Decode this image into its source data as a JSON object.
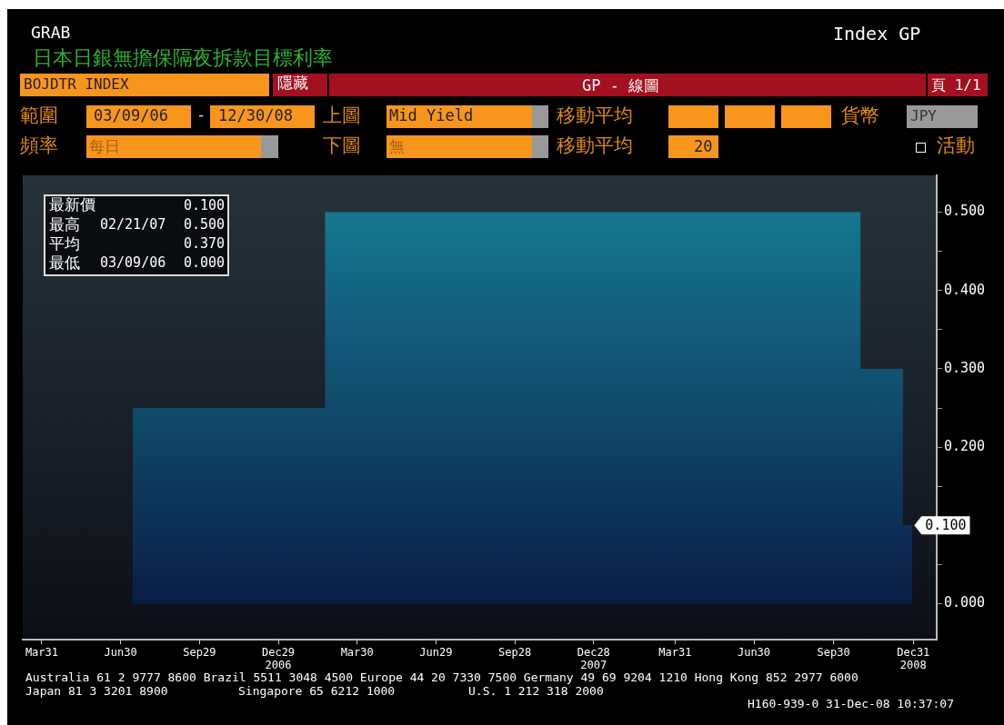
{
  "chart_data": {
    "type": "step",
    "title": "日本日銀無擔保隔夜拆款目標利率",
    "x": [
      "2006-03-09",
      "2006-07-14",
      "2007-02-21",
      "2008-10-31",
      "2008-12-19",
      "2008-12-30"
    ],
    "series": [
      {
        "type": "area",
        "color": "#177f96",
        "values": [
          0,
          0.25,
          0.5,
          0.3,
          0.1,
          0.1
        ],
        "value_labels": [
          null,
          null,
          null,
          null,
          null,
          "0.100"
        ]
      }
    ],
    "xlim": [
      "2006-03-09",
      "2009-01-27"
    ],
    "xticks": [
      {
        "value": "2006-03-31",
        "label": "Mar31"
      },
      {
        "value": "2006-06-30",
        "label": "Jun30"
      },
      {
        "value": "2006-09-29",
        "label": "Sep29"
      },
      {
        "value": "2006-12-29",
        "label": "Dec29\n2006"
      },
      {
        "value": "2007-03-30",
        "label": "Mar30"
      },
      {
        "value": "2007-06-29",
        "label": "Jun29"
      },
      {
        "value": "2007-09-28",
        "label": "Sep28"
      },
      {
        "value": "2007-12-28",
        "label": "Dec28\n2007"
      },
      {
        "value": "2008-03-31",
        "label": "Mar31"
      },
      {
        "value": "2008-06-30",
        "label": "Jun30"
      },
      {
        "value": "2008-09-30",
        "label": "Sep30"
      },
      {
        "value": "2008-12-31",
        "label": "Dec31\n2008"
      }
    ],
    "ylim": [
      -0.046,
      0.547
    ],
    "yticks": [
      {
        "value": 0,
        "label": "0.000"
      },
      {
        "value": 0.05,
        "label": null
      },
      {
        "value": 0.1,
        "label": null
      },
      {
        "value": 0.15,
        "label": null
      },
      {
        "value": 0.2,
        "label": "0.200"
      },
      {
        "value": 0.25,
        "label": null
      },
      {
        "value": 0.3,
        "label": "0.300"
      },
      {
        "value": 0.35,
        "label": null
      },
      {
        "value": 0.4,
        "label": "0.400"
      },
      {
        "value": 0.45,
        "label": null
      },
      {
        "value": 0.5,
        "label": "0.500"
      }
    ],
    "grid": false,
    "legend": false,
    "annotations": [
      "GRAB",
      "Index GP",
      "BOJDTR INDEX",
      "隱藏",
      "GP - 線圖",
      "頁 1/1",
      "範圍",
      "03/09/06",
      "-",
      "12/30/08",
      "上圖",
      "Mid Yield",
      "移動平均",
      "貨幣",
      "JPY",
      "頻率",
      "每日",
      "下圖",
      "無",
      "移動平均",
      "20",
      "活動",
      "最新價",
      "0.100",
      "最高",
      "02/21/07",
      "0.500",
      "平均",
      "0.370",
      "最低",
      "03/09/06",
      "0.000",
      "Australia 61 2 9777 8600 Brazil 5511 3048 4500 Europe 44 20 7330 7500 Germany 49 69 9204 1210 Hong Kong 852 2977 6000",
      "Japan 81 3 3201 8900",
      "Singapore 65 6212 1000",
      "U.S. 1 212 318 2000",
      "H160-939-0 31-Dec-08 10:37:07"
    ]
  }
}
